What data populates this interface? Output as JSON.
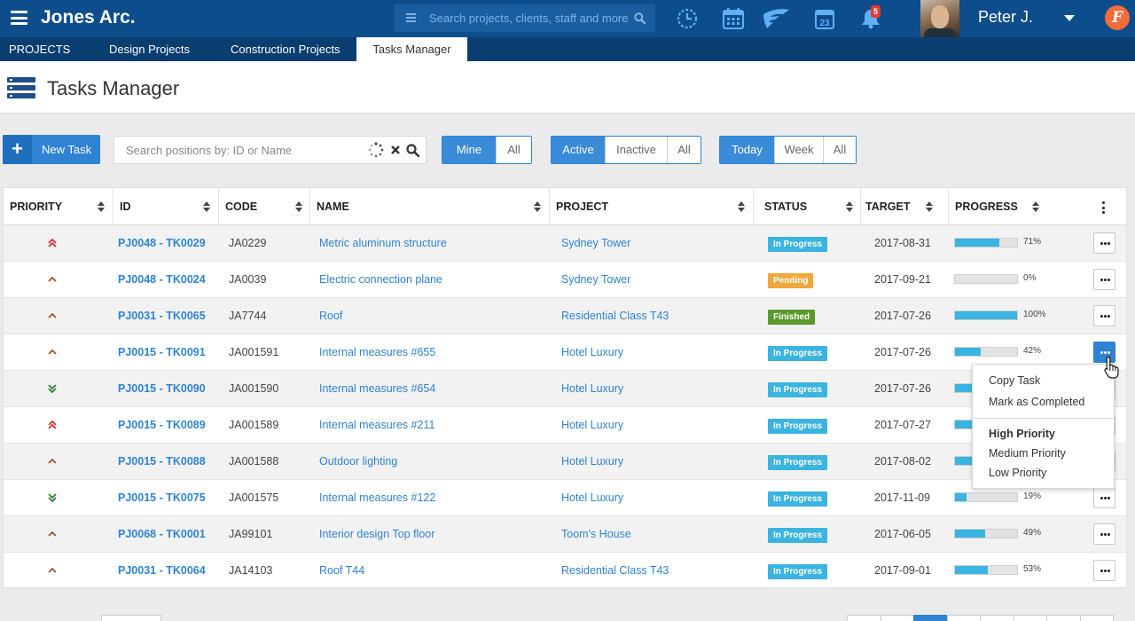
{
  "app": {
    "brand": "Jones Arc.",
    "search_placeholder": "Search projects, clients, staff and more",
    "notification_count": "5",
    "user_name": "Peter J.",
    "calendar_day": "23",
    "logo_letter": "F"
  },
  "nav": {
    "tabs": [
      {
        "label": "PROJECTS"
      },
      {
        "label": "Design Projects"
      },
      {
        "label": "Construction Projects"
      },
      {
        "label": "Tasks Manager",
        "active": true
      }
    ]
  },
  "page": {
    "title": "Tasks Manager"
  },
  "toolbar": {
    "new_task_label": "New Task",
    "search_placeholder": "Search positions by: ID or Name",
    "owner_filter": [
      "Mine",
      "All"
    ],
    "state_filter": [
      "Active",
      "Inactive",
      "All"
    ],
    "time_filter": [
      "Today",
      "Week",
      "All"
    ]
  },
  "table": {
    "columns": [
      "PRIORITY",
      "ID",
      "CODE",
      "NAME",
      "PROJECT",
      "STATUS",
      "TARGET",
      "PROGRESS"
    ],
    "rows": [
      {
        "priority": "high",
        "id": "PJ0048 - TK0029",
        "code": "JA0229",
        "name": "Metric aluminum structure",
        "project": "Sydney Tower",
        "status": "In Progress",
        "target": "2017-08-31",
        "progress": 71,
        "progress_label": "71%"
      },
      {
        "priority": "medium",
        "id": "PJ0048 - TK0024",
        "code": "JA0039",
        "name": "Electric connection plane",
        "project": "Sydney Tower",
        "status": "Pending",
        "target": "2017-09-21",
        "progress": 0,
        "progress_label": "0%"
      },
      {
        "priority": "medium",
        "id": "PJ0031 - TK0065",
        "code": "JA7744",
        "name": "Roof",
        "project": "Residential Class T43",
        "status": "Finished",
        "target": "2017-07-26",
        "progress": 100,
        "progress_label": "100%"
      },
      {
        "priority": "medium",
        "id": "PJ0015 - TK0091",
        "code": "JA001591",
        "name": "Internal measures #655",
        "project": "Hotel Luxury",
        "status": "In Progress",
        "target": "2017-07-26",
        "progress": 42,
        "progress_label": "42%"
      },
      {
        "priority": "low",
        "id": "PJ0015 - TK0090",
        "code": "JA001590",
        "name": "Internal measures #654",
        "project": "Hotel Luxury",
        "status": "In Progress",
        "target": "2017-07-26",
        "progress": 30,
        "progress_label": ""
      },
      {
        "priority": "high",
        "id": "PJ0015 - TK0089",
        "code": "JA001589",
        "name": "Internal measures #211",
        "project": "Hotel Luxury",
        "status": "In Progress",
        "target": "2017-07-27",
        "progress": 30,
        "progress_label": ""
      },
      {
        "priority": "medium",
        "id": "PJ0015 - TK0088",
        "code": "JA001588",
        "name": "Outdoor lighting",
        "project": "Hotel Luxury",
        "status": "In Progress",
        "target": "2017-08-02",
        "progress": 30,
        "progress_label": ""
      },
      {
        "priority": "low",
        "id": "PJ0015 - TK0075",
        "code": "JA001575",
        "name": "Internal measures #122",
        "project": "Hotel Luxury",
        "status": "In Progress",
        "target": "2017-11-09",
        "progress": 19,
        "progress_label": "19%"
      },
      {
        "priority": "medium",
        "id": "PJ0068 - TK0001",
        "code": "JA99101",
        "name": "Interior design Top floor",
        "project": "Toom's House",
        "status": "In Progress",
        "target": "2017-06-05",
        "progress": 49,
        "progress_label": "49%"
      },
      {
        "priority": "medium",
        "id": "PJ0031 - TK0064",
        "code": "JA14103",
        "name": "Roof T44",
        "project": "Residential Class T43",
        "status": "In Progress",
        "target": "2017-09-01",
        "progress": 53,
        "progress_label": "53%"
      }
    ]
  },
  "row_menu": {
    "items": [
      "Copy Task",
      "Mark as Completed",
      "High Priority",
      "Medium Priority",
      "Low Priority"
    ]
  },
  "colors": {
    "topbar": "#0d4d8c",
    "nav": "#0a3d70",
    "accent": "#2f83d2",
    "in_progress": "#3ab4e0",
    "pending": "#f0a73c",
    "finished": "#5b9a2b",
    "priority_high": "#d32f2f",
    "priority_medium": "#a0522d",
    "priority_low": "#2e7d32"
  },
  "icons": [
    "menu-icon",
    "list-icon",
    "search-icon",
    "clock-icon",
    "calendar-icon",
    "wing-icon",
    "calendar-day-icon",
    "bell-icon",
    "caret-down-icon",
    "plus-icon",
    "spinner-icon",
    "clear-icon",
    "sort-icon",
    "kebab-icon",
    "more-dots-icon",
    "hand-cursor-icon"
  ]
}
